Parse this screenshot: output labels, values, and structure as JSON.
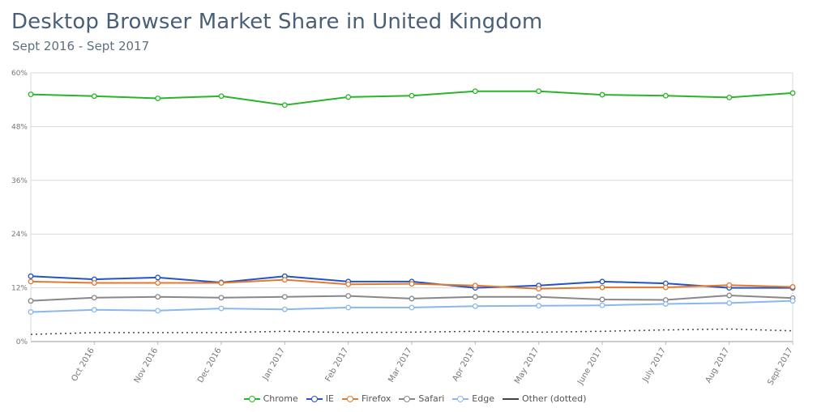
{
  "chart_data": {
    "type": "line",
    "title": "Desktop Browser Market Share in United Kingdom",
    "subtitle": "Sept 2016 - Sept 2017",
    "categories": [
      "Sept 2016",
      "Oct 2016",
      "Nov 2016",
      "Dec 2016",
      "Jan 2017",
      "Feb 2017",
      "Mar 2017",
      "Apr 2017",
      "May 2017",
      "June 2017",
      "July 2017",
      "Aug 2017",
      "Sept 2017"
    ],
    "x_tick_labels": [
      "Oct 2016",
      "Nov 2016",
      "Dec 2016",
      "Jan 2017",
      "Feb 2017",
      "Mar 2017",
      "Apr 2017",
      "May 2017",
      "June 2017",
      "July 2017",
      "Aug 2017",
      "Sept 2017"
    ],
    "y_ticks": [
      "0%",
      "12%",
      "24%",
      "36%",
      "48%",
      "60%"
    ],
    "ylim": [
      0,
      60
    ],
    "grid": true,
    "legend_position": "bottom",
    "series": [
      {
        "name": "Chrome",
        "color": "#2ab42a",
        "markers": true,
        "dotted": false,
        "values": [
          55.2,
          54.8,
          54.3,
          54.8,
          52.8,
          54.6,
          54.9,
          55.9,
          55.9,
          55.1,
          54.9,
          54.5,
          55.5
        ]
      },
      {
        "name": "IE",
        "color": "#2453c4",
        "markers": true,
        "dotted": false,
        "values": [
          14.6,
          13.9,
          14.3,
          13.2,
          14.6,
          13.4,
          13.4,
          12.0,
          12.5,
          13.4,
          13.0,
          12.0,
          12.0
        ]
      },
      {
        "name": "Firefox",
        "color": "#e27a2f",
        "markers": true,
        "dotted": false,
        "values": [
          13.4,
          13.1,
          13.1,
          13.1,
          13.8,
          12.8,
          12.9,
          12.5,
          11.8,
          12.1,
          12.1,
          12.6,
          12.2
        ]
      },
      {
        "name": "Safari",
        "color": "#888888",
        "markers": true,
        "dotted": false,
        "values": [
          9.1,
          9.8,
          10.0,
          9.8,
          10.0,
          10.2,
          9.6,
          10.0,
          10.0,
          9.4,
          9.3,
          10.3,
          9.7
        ]
      },
      {
        "name": "Edge",
        "color": "#8ab8ec",
        "markers": true,
        "dotted": false,
        "values": [
          6.6,
          7.1,
          6.9,
          7.4,
          7.2,
          7.6,
          7.6,
          7.9,
          8.0,
          8.1,
          8.4,
          8.6,
          9.1
        ]
      },
      {
        "name": "Other (dotted)",
        "color": "#444444",
        "markers": false,
        "dotted": true,
        "values": [
          1.6,
          2.0,
          2.0,
          2.0,
          2.3,
          2.0,
          2.1,
          2.3,
          2.1,
          2.3,
          2.6,
          2.8,
          2.4
        ]
      }
    ]
  }
}
